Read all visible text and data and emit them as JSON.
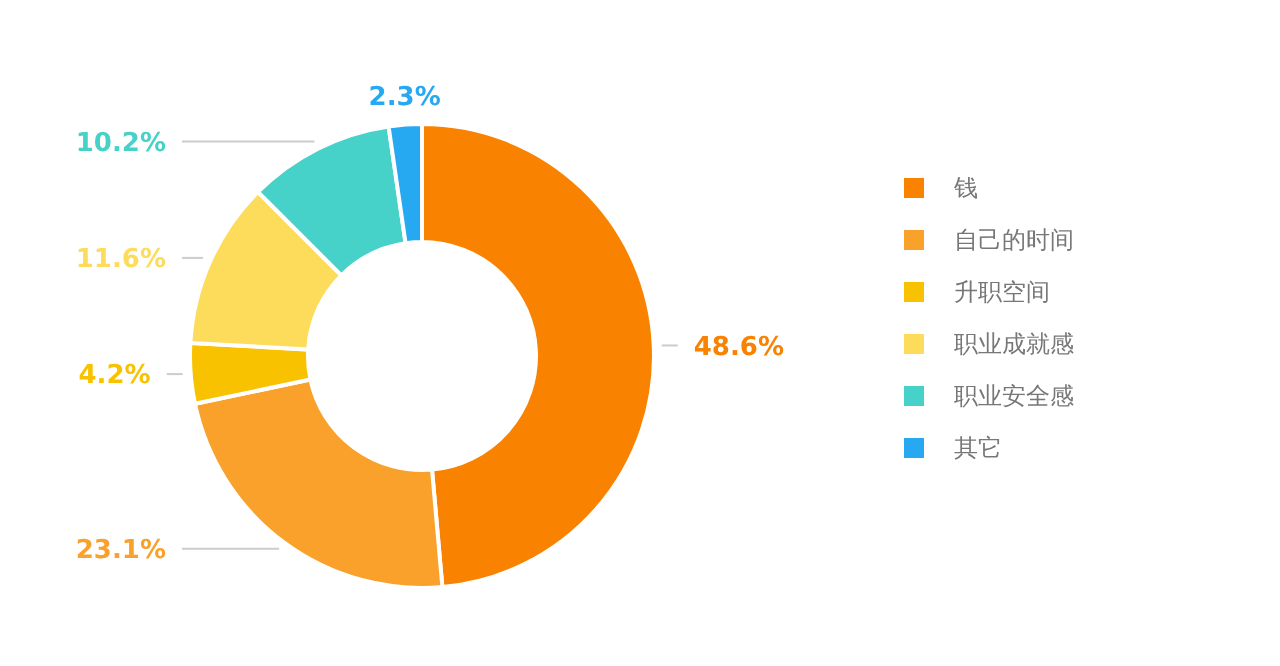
{
  "chart_data": {
    "type": "donut",
    "categories": [
      "钱",
      "自己的时间",
      "升职空间",
      "职业成就感",
      "职业安全感",
      "其它"
    ],
    "values": [
      48.6,
      23.1,
      4.2,
      11.6,
      10.2,
      2.3
    ],
    "colors": [
      "#f98200",
      "#f9a12b",
      "#f9c200",
      "#fddc5c",
      "#46d2c9",
      "#27a9f1"
    ],
    "value_labels": [
      "48.6%",
      "23.1%",
      "4.2%",
      "11.6%",
      "10.2%",
      "2.3%"
    ],
    "legend": "right"
  }
}
